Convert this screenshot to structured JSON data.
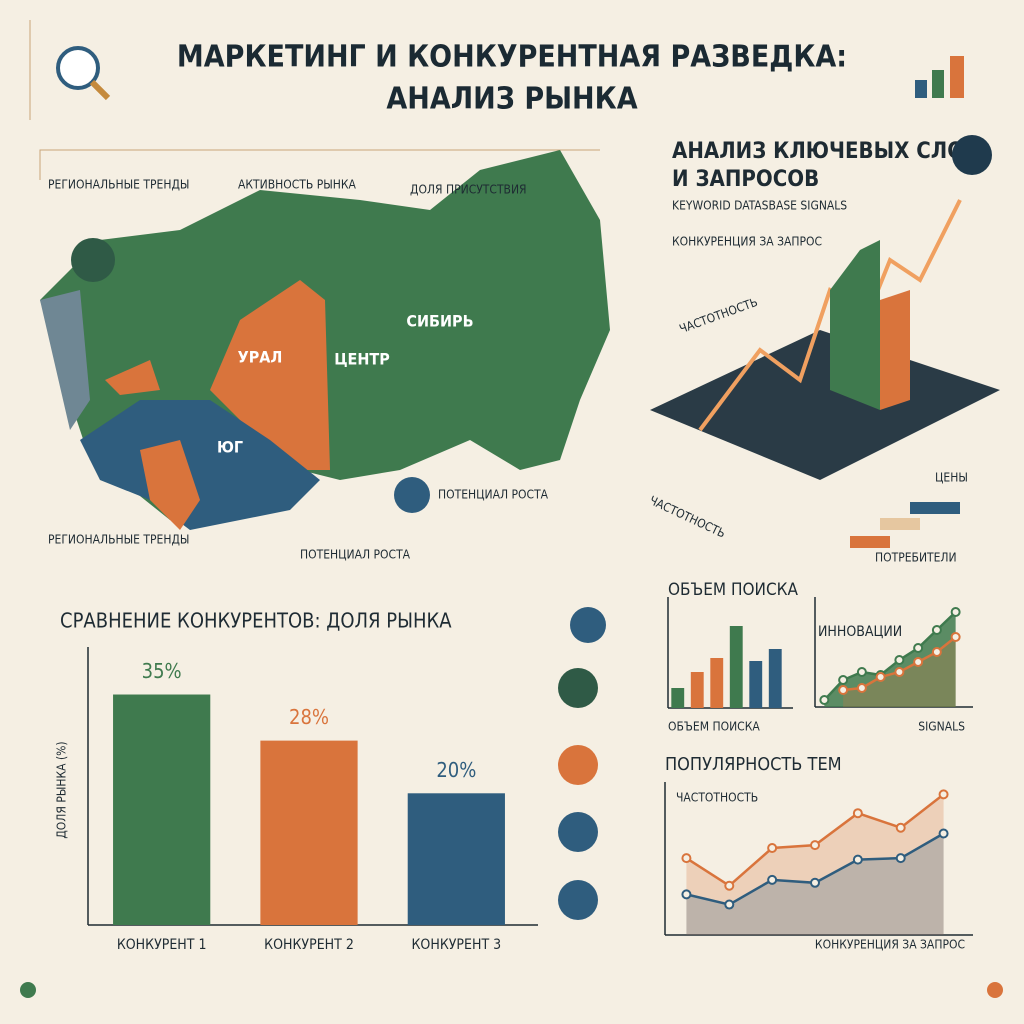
{
  "header": {
    "title_line1": "МАРКЕТИНГ И КОНКУРЕНТНАЯ РАЗВЕДКА:",
    "title_line2": "АНАЛИЗ РЫНКА"
  },
  "map": {
    "regional_trends_top": "РЕГИОНАЛЬНЫЕ ТРЕНДЫ",
    "market_activity": "АКТИВНОСТЬ РЫНКА",
    "presence_share": "ДОЛЯ ПРИСУТСТВИЯ",
    "siberia": "СИБИРЬ",
    "ural": "УРАЛ",
    "center": "ЦЕНТР",
    "south": "ЮГ",
    "growth_potential_right": "ПОТЕНЦИАЛ РОСТА",
    "regional_trends_bottom": "РЕГИОНАЛЬНЫЕ ТРЕНДЫ",
    "growth_potential_bottom": "ПОТЕНЦИАЛ РОСТА"
  },
  "keywords": {
    "title_line1": "АНАЛИЗ КЛЮЧЕВЫХ СЛОВ",
    "title_line2": "И ЗАПРОСОВ",
    "subtitle": "KEYWORID DATASBASE SIGNALS",
    "competition": "КОНКУРЕНЦИЯ ЗА ЗАПРОС",
    "frequency_top": "ЧАСТОТНОСТЬ",
    "frequency_bottom": "ЧАСТОТНОСТЬ",
    "prices": "ЦЕНЫ",
    "consumers": "ПОТРЕБИТЕЛИ"
  },
  "chart_data": [
    {
      "type": "bar",
      "title": "СРАВНЕНИЕ КОНКУРЕНТОВ: ДОЛЯ РЫНКА",
      "y_label": "ДОЛЯ РЫНКА (%)",
      "categories": [
        "КОНКУРЕНТ 1",
        "КОНКУРЕНТ 2",
        "КОНКУРЕНТ 3"
      ],
      "values": [
        35,
        28,
        20
      ],
      "value_labels": [
        "35%",
        "28%",
        "20%"
      ],
      "colors": [
        "#3f7a4e",
        "#d9743c",
        "#2f5d7e"
      ],
      "ylim": [
        0,
        41
      ]
    },
    {
      "type": "bar",
      "title": "ОБЪЕМ ПОИСКА",
      "x_label": "ОБЪЕМ ПОИСКА",
      "categories": [
        null,
        null,
        null,
        null,
        null,
        null
      ],
      "values": [
        20,
        36,
        50,
        82,
        47,
        59
      ],
      "colors": [
        "#3f7a4e",
        "#d9743c",
        "#d9743c",
        "#3f7a4e",
        "#2f5d7e",
        "#2f5d7e"
      ],
      "ylim": [
        0,
        103
      ]
    },
    {
      "type": "area",
      "title": "ИННОВАЦИИ",
      "x_label": "SIGNALS",
      "categories": [
        null,
        null,
        null,
        null,
        null,
        null,
        null,
        null
      ],
      "series": [
        {
          "color": "#3f7a4e",
          "values": [
            7,
            27,
            35,
            32,
            47,
            59,
            77,
            95
          ]
        },
        {
          "color": "#d9743c",
          "values": [
            null,
            17,
            19,
            30,
            35,
            45,
            55,
            70
          ]
        }
      ],
      "ylim": [
        0,
        102
      ]
    },
    {
      "type": "line",
      "title": "ПОПУЛЯРНОСТЬ ТЕМ",
      "y_label": "ЧАСТОТНОСТЬ",
      "x_label": "КОНКУРЕНЦИЯ ЗА ЗАПРОС",
      "categories": [
        null,
        null,
        null,
        null,
        null,
        null,
        null
      ],
      "series": [
        {
          "color": "#d9743c",
          "values": [
            53,
            34,
            60,
            62,
            84,
            74,
            97
          ]
        },
        {
          "color": "#2f5d7e",
          "values": [
            28,
            21,
            38,
            36,
            52,
            53,
            70
          ]
        }
      ],
      "ylim": [
        0,
        100
      ]
    }
  ]
}
